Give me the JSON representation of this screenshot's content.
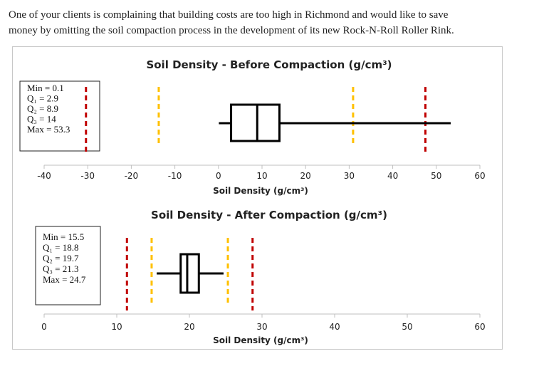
{
  "question": {
    "line1": "One of your clients is complaining that building costs are too high in Richmond and would like to save",
    "line2": "money by omitting the soil compaction process in the development of its new Rock-N-Roll Roller Rink."
  },
  "colors": {
    "red_dash": "#c00000",
    "gold_dash": "#ffc000",
    "box": "#000000"
  },
  "chart_data": [
    {
      "type": "boxplot",
      "title": "Soil Density - Before Compaction (g/cm³)",
      "xlabel": "Soil Density (g/cm³)",
      "xlim": [
        -40,
        60
      ],
      "ticks": [
        "-40",
        "-30",
        "-20",
        "-10",
        "0",
        "10",
        "20",
        "30",
        "40",
        "50",
        "60"
      ],
      "tick_values": [
        -40,
        -30,
        -20,
        -10,
        0,
        10,
        20,
        30,
        40,
        50,
        60
      ],
      "summary": {
        "min": 0.1,
        "q1": 2.9,
        "q2": 8.9,
        "q3": 14,
        "max": 53.3
      },
      "stats_lines": [
        "Min = 0.1",
        "Q₁ = 2.9",
        "Q₂ = 8.9",
        "Q₃ = 14",
        "Max = 53.3"
      ],
      "red_dashes": [
        -30.4,
        47.5
      ],
      "gold_dashes": [
        -13.7,
        30.9
      ]
    },
    {
      "type": "boxplot",
      "title": "Soil Density - After Compaction (g/cm³)",
      "xlabel": "Soil Density (g/cm³)",
      "xlim": [
        0,
        60
      ],
      "ticks": [
        "0",
        "10",
        "20",
        "30",
        "40",
        "50",
        "60"
      ],
      "tick_values": [
        0,
        10,
        20,
        30,
        40,
        50,
        60
      ],
      "summary": {
        "min": 15.5,
        "q1": 18.8,
        "q2": 19.7,
        "q3": 21.3,
        "max": 24.7
      },
      "stats_lines": [
        "Min = 15.5",
        "Q₁ = 18.8",
        "Q₂ = 19.7",
        "Q₃ = 21.3",
        "Max = 24.7"
      ],
      "red_dashes": [
        11.4,
        28.7
      ],
      "gold_dashes": [
        14.8,
        25.3
      ]
    }
  ]
}
